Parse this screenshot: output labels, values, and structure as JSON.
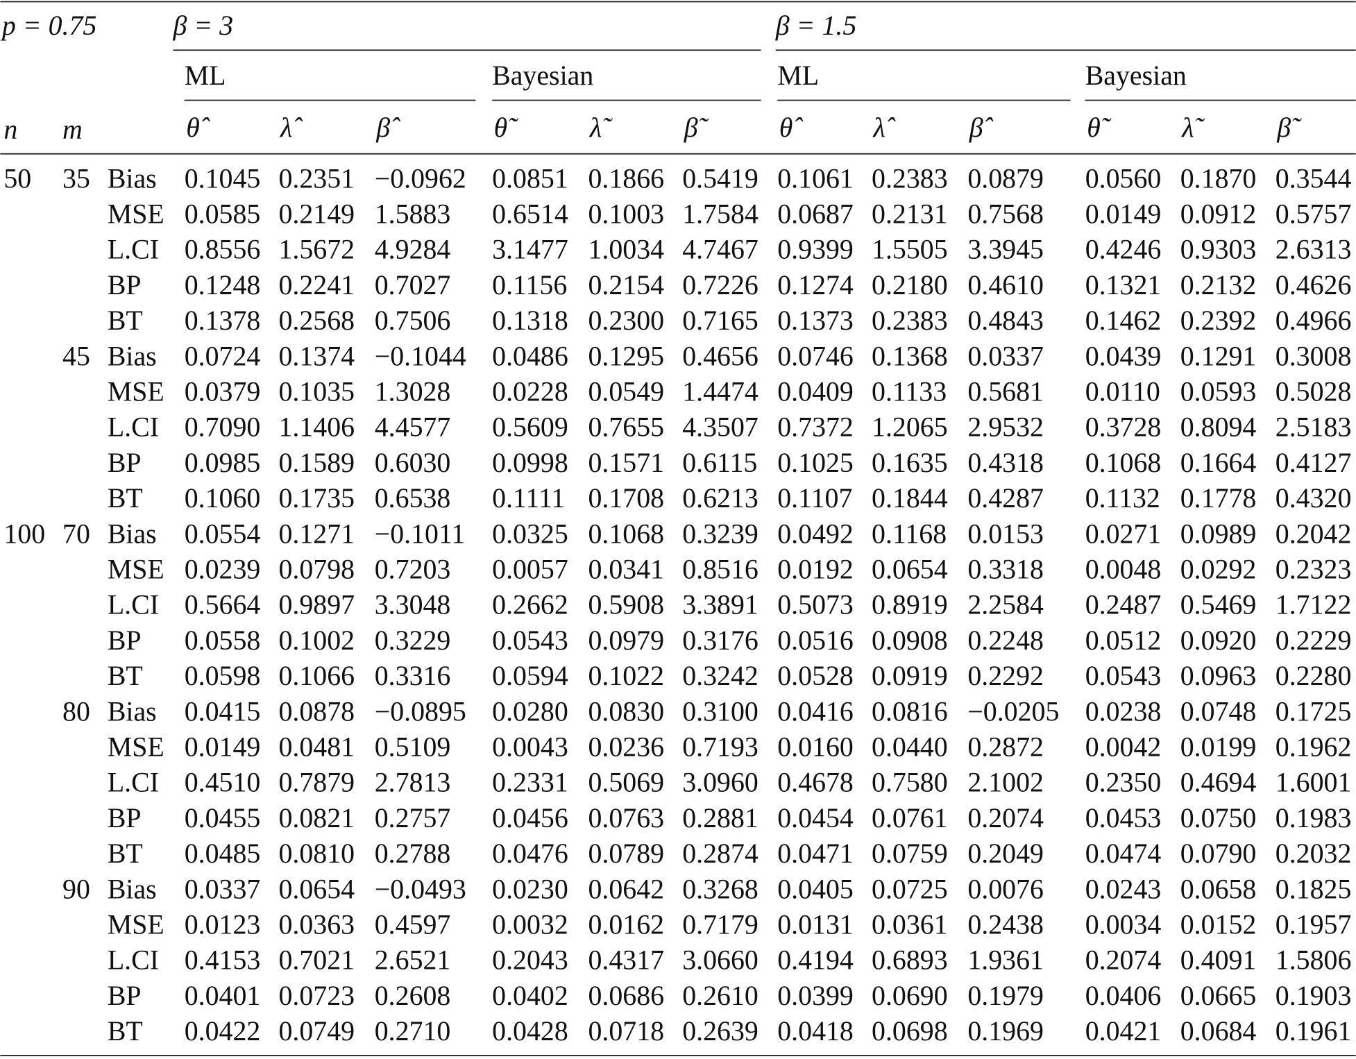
{
  "header": {
    "p": "p = 0.75",
    "n": "n",
    "m": "m",
    "groups": [
      {
        "label": "β = 3",
        "methods": [
          {
            "label": "ML",
            "columns": [
              "θ̂",
              "λ̂",
              "β̂"
            ]
          },
          {
            "label": "Bayesian",
            "columns": [
              "θ̃",
              "λ̃",
              "β̃"
            ]
          }
        ]
      },
      {
        "label": "β = 1.5",
        "methods": [
          {
            "label": "ML",
            "columns": [
              "θ̂",
              "λ̂",
              "β̂"
            ]
          },
          {
            "label": "Bayesian",
            "columns": [
              "θ̃",
              "λ̃",
              "β̃"
            ]
          }
        ]
      }
    ]
  },
  "table": {
    "rows": [
      {
        "n": "50",
        "m": "35",
        "stat": "Bias",
        "values": [
          "0.1045",
          "0.2351",
          "−0.0962",
          "0.0851",
          "0.1866",
          "0.5419",
          "0.1061",
          "0.2383",
          "0.0879",
          "0.0560",
          "0.1870",
          "0.3544"
        ]
      },
      {
        "stat": "MSE",
        "values": [
          "0.0585",
          "0.2149",
          "1.5883",
          "0.6514",
          "0.1003",
          "1.7584",
          "0.0687",
          "0.2131",
          "0.7568",
          "0.0149",
          "0.0912",
          "0.5757"
        ]
      },
      {
        "stat": "L.CI",
        "values": [
          "0.8556",
          "1.5672",
          "4.9284",
          "3.1477",
          "1.0034",
          "4.7467",
          "0.9399",
          "1.5505",
          "3.3945",
          "0.4246",
          "0.9303",
          "2.6313"
        ]
      },
      {
        "stat": "BP",
        "values": [
          "0.1248",
          "0.2241",
          "0.7027",
          "0.1156",
          "0.2154",
          "0.7226",
          "0.1274",
          "0.2180",
          "0.4610",
          "0.1321",
          "0.2132",
          "0.4626"
        ]
      },
      {
        "stat": "BT",
        "values": [
          "0.1378",
          "0.2568",
          "0.7506",
          "0.1318",
          "0.2300",
          "0.7165",
          "0.1373",
          "0.2383",
          "0.4843",
          "0.1462",
          "0.2392",
          "0.4966"
        ]
      },
      {
        "m": "45",
        "stat": "Bias",
        "values": [
          "0.0724",
          "0.1374",
          "−0.1044",
          "0.0486",
          "0.1295",
          "0.4656",
          "0.0746",
          "0.1368",
          "0.0337",
          "0.0439",
          "0.1291",
          "0.3008"
        ]
      },
      {
        "stat": "MSE",
        "values": [
          "0.0379",
          "0.1035",
          "1.3028",
          "0.0228",
          "0.0549",
          "1.4474",
          "0.0409",
          "0.1133",
          "0.5681",
          "0.0110",
          "0.0593",
          "0.5028"
        ]
      },
      {
        "stat": "L.CI",
        "values": [
          "0.7090",
          "1.1406",
          "4.4577",
          "0.5609",
          "0.7655",
          "4.3507",
          "0.7372",
          "1.2065",
          "2.9532",
          "0.3728",
          "0.8094",
          "2.5183"
        ]
      },
      {
        "stat": "BP",
        "values": [
          "0.0985",
          "0.1589",
          "0.6030",
          "0.0998",
          "0.1571",
          "0.6115",
          "0.1025",
          "0.1635",
          "0.4318",
          "0.1068",
          "0.1664",
          "0.4127"
        ]
      },
      {
        "stat": "BT",
        "values": [
          "0.1060",
          "0.1735",
          "0.6538",
          "0.1111",
          "0.1708",
          "0.6213",
          "0.1107",
          "0.1844",
          "0.4287",
          "0.1132",
          "0.1778",
          "0.4320"
        ]
      },
      {
        "n": "100",
        "m": "70",
        "stat": "Bias",
        "values": [
          "0.0554",
          "0.1271",
          "−0.1011",
          "0.0325",
          "0.1068",
          "0.3239",
          "0.0492",
          "0.1168",
          "0.0153",
          "0.0271",
          "0.0989",
          "0.2042"
        ]
      },
      {
        "stat": "MSE",
        "values": [
          "0.0239",
          "0.0798",
          "0.7203",
          "0.0057",
          "0.0341",
          "0.8516",
          "0.0192",
          "0.0654",
          "0.3318",
          "0.0048",
          "0.0292",
          "0.2323"
        ]
      },
      {
        "stat": "L.CI",
        "values": [
          "0.5664",
          "0.9897",
          "3.3048",
          "0.2662",
          "0.5908",
          "3.3891",
          "0.5073",
          "0.8919",
          "2.2584",
          "0.2487",
          "0.5469",
          "1.7122"
        ]
      },
      {
        "stat": "BP",
        "values": [
          "0.0558",
          "0.1002",
          "0.3229",
          "0.0543",
          "0.0979",
          "0.3176",
          "0.0516",
          "0.0908",
          "0.2248",
          "0.0512",
          "0.0920",
          "0.2229"
        ]
      },
      {
        "stat": "BT",
        "values": [
          "0.0598",
          "0.1066",
          "0.3316",
          "0.0594",
          "0.1022",
          "0.3242",
          "0.0528",
          "0.0919",
          "0.2292",
          "0.0543",
          "0.0963",
          "0.2280"
        ]
      },
      {
        "m": "80",
        "stat": "Bias",
        "values": [
          "0.0415",
          "0.0878",
          "−0.0895",
          "0.0280",
          "0.0830",
          "0.3100",
          "0.0416",
          "0.0816",
          "−0.0205",
          "0.0238",
          "0.0748",
          "0.1725"
        ]
      },
      {
        "stat": "MSE",
        "values": [
          "0.0149",
          "0.0481",
          "0.5109",
          "0.0043",
          "0.0236",
          "0.7193",
          "0.0160",
          "0.0440",
          "0.2872",
          "0.0042",
          "0.0199",
          "0.1962"
        ]
      },
      {
        "stat": "L.CI",
        "values": [
          "0.4510",
          "0.7879",
          "2.7813",
          "0.2331",
          "0.5069",
          "3.0960",
          "0.4678",
          "0.7580",
          "2.1002",
          "0.2350",
          "0.4694",
          "1.6001"
        ]
      },
      {
        "stat": "BP",
        "values": [
          "0.0455",
          "0.0821",
          "0.2757",
          "0.0456",
          "0.0763",
          "0.2881",
          "0.0454",
          "0.0761",
          "0.2074",
          "0.0453",
          "0.0750",
          "0.1983"
        ]
      },
      {
        "stat": "BT",
        "values": [
          "0.0485",
          "0.0810",
          "0.2788",
          "0.0476",
          "0.0789",
          "0.2874",
          "0.0471",
          "0.0759",
          "0.2049",
          "0.0474",
          "0.0790",
          "0.2032"
        ]
      },
      {
        "m": "90",
        "stat": "Bias",
        "values": [
          "0.0337",
          "0.0654",
          "−0.0493",
          "0.0230",
          "0.0642",
          "0.3268",
          "0.0405",
          "0.0725",
          "0.0076",
          "0.0243",
          "0.0658",
          "0.1825"
        ]
      },
      {
        "stat": "MSE",
        "values": [
          "0.0123",
          "0.0363",
          "0.4597",
          "0.0032",
          "0.0162",
          "0.7179",
          "0.0131",
          "0.0361",
          "0.2438",
          "0.0034",
          "0.0152",
          "0.1957"
        ]
      },
      {
        "stat": "L.CI",
        "values": [
          "0.4153",
          "0.7021",
          "2.6521",
          "0.2043",
          "0.4317",
          "3.0660",
          "0.4194",
          "0.6893",
          "1.9361",
          "0.2074",
          "0.4091",
          "1.5806"
        ]
      },
      {
        "stat": "BP",
        "values": [
          "0.0401",
          "0.0723",
          "0.2608",
          "0.0402",
          "0.0686",
          "0.2610",
          "0.0399",
          "0.0690",
          "0.1979",
          "0.0406",
          "0.0665",
          "0.1903"
        ]
      },
      {
        "stat": "BT",
        "values": [
          "0.0422",
          "0.0749",
          "0.2710",
          "0.0428",
          "0.0718",
          "0.2639",
          "0.0418",
          "0.0698",
          "0.1969",
          "0.0421",
          "0.0684",
          "0.1961"
        ]
      }
    ]
  }
}
